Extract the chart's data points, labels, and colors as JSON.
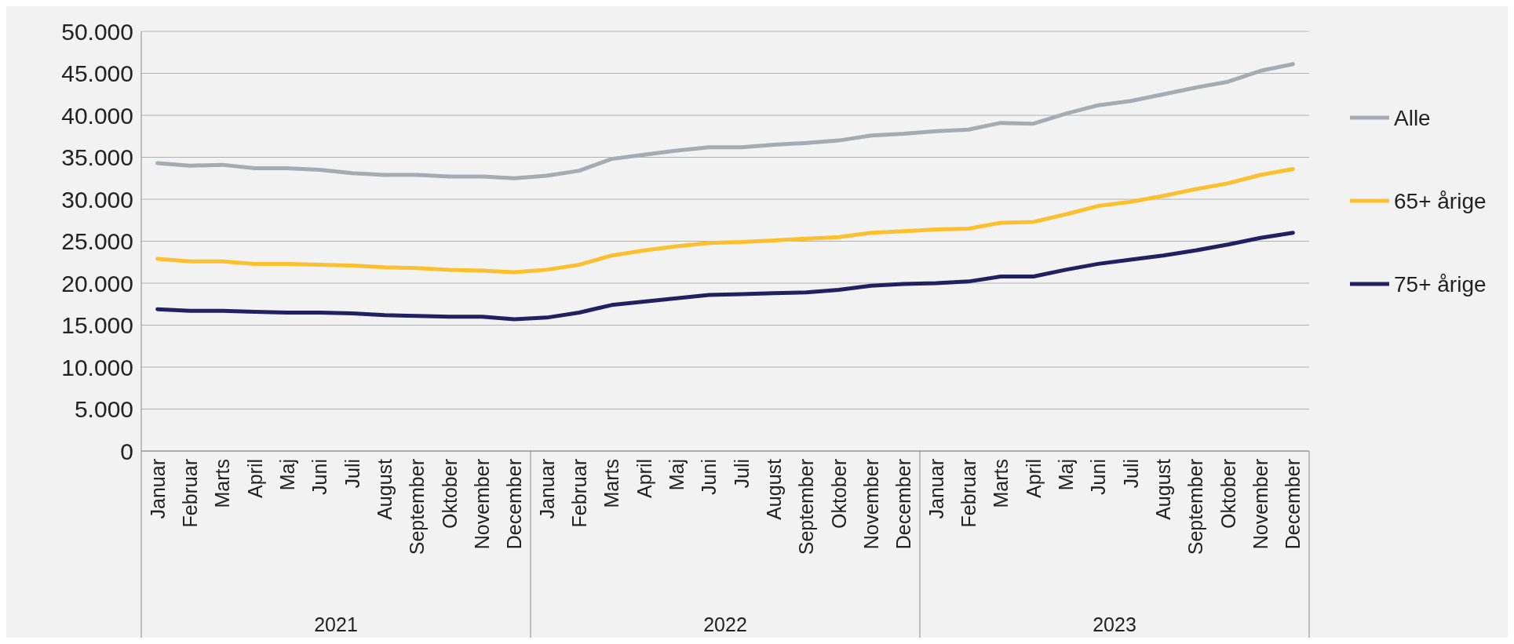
{
  "chart_data": {
    "type": "line",
    "categories": [
      "Januar",
      "Februar",
      "Marts",
      "April",
      "Maj",
      "Juni",
      "Juli",
      "August",
      "September",
      "Oktober",
      "November",
      "December",
      "Januar",
      "Februar",
      "Marts",
      "April",
      "Maj",
      "Juni",
      "Juli",
      "August",
      "September",
      "Oktober",
      "November",
      "December",
      "Januar",
      "Februar",
      "Marts",
      "April",
      "Maj",
      "Juni",
      "Juli",
      "August",
      "September",
      "Oktober",
      "November",
      "December"
    ],
    "annotations": [
      "2021",
      "2022",
      "2023"
    ],
    "series": [
      {
        "name": "Alle",
        "color": "#a5abb3",
        "values": [
          34300,
          34000,
          34100,
          33700,
          33700,
          33500,
          33100,
          32900,
          32900,
          32700,
          32700,
          32500,
          32800,
          33400,
          34800,
          35300,
          35800,
          36200,
          36200,
          36500,
          36700,
          37000,
          37600,
          37800,
          38100,
          38300,
          39100,
          39000,
          40200,
          41200,
          41700,
          42500,
          43300,
          44000,
          45300,
          46100
        ]
      },
      {
        "name": "65+ årige",
        "color": "#fcc02e",
        "values": [
          22900,
          22600,
          22600,
          22300,
          22300,
          22200,
          22100,
          21900,
          21800,
          21600,
          21500,
          21300,
          21600,
          22200,
          23300,
          23900,
          24400,
          24800,
          24900,
          25100,
          25300,
          25500,
          26000,
          26200,
          26400,
          26500,
          27200,
          27300,
          28200,
          29200,
          29700,
          30400,
          31200,
          31900,
          32900,
          33600
        ]
      },
      {
        "name": "75+ årige",
        "color": "#1f2160",
        "values": [
          16900,
          16700,
          16700,
          16600,
          16500,
          16500,
          16400,
          16200,
          16100,
          16000,
          16000,
          15700,
          15900,
          16500,
          17400,
          17800,
          18200,
          18600,
          18700,
          18800,
          18900,
          19200,
          19700,
          19900,
          20000,
          20200,
          20800,
          20800,
          21600,
          22300,
          22800,
          23300,
          23900,
          24600,
          25400,
          26000
        ]
      }
    ],
    "ylim": [
      0,
      50000
    ],
    "yticks": [
      0,
      {
        "value": 5000,
        "label": "5.000"
      },
      {
        "value": 10000,
        "label": "10.000"
      },
      {
        "value": 15000,
        "label": "15.000"
      },
      {
        "value": 20000,
        "label": "20.000"
      },
      {
        "value": 25000,
        "label": "25.000"
      },
      {
        "value": 30000,
        "label": "30.000"
      },
      {
        "value": 35000,
        "label": "35.000"
      },
      {
        "value": 40000,
        "label": "40.000"
      },
      {
        "value": 45000,
        "label": "45.000"
      },
      {
        "value": 50000,
        "label": "50.000"
      }
    ],
    "grid": "y",
    "legend": "right",
    "marker": "none",
    "line_style": "solid"
  }
}
